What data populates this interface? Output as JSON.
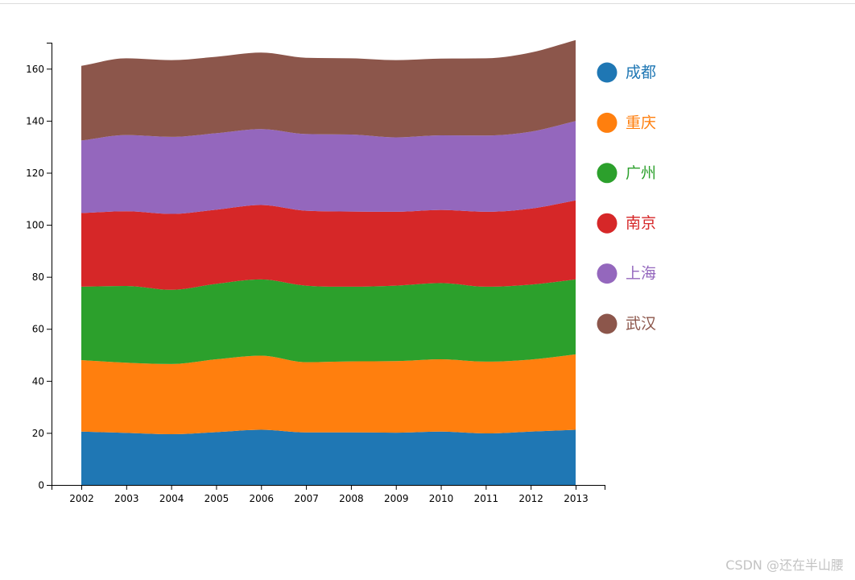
{
  "chart_data": {
    "type": "area",
    "stacked": true,
    "title": "",
    "xlabel": "",
    "ylabel": "",
    "x": [
      "2002",
      "2003",
      "2004",
      "2005",
      "2006",
      "2007",
      "2008",
      "2009",
      "2010",
      "2011",
      "2012",
      "2013"
    ],
    "ylim": [
      0,
      170
    ],
    "y_ticks": [
      0,
      20,
      40,
      60,
      80,
      100,
      120,
      140,
      160
    ],
    "legend_position": "right",
    "series": [
      {
        "name": "成都",
        "color": "#1f77b4",
        "values": [
          20.5,
          20,
          19.5,
          20.3,
          21.2,
          20.2,
          20.2,
          20.1,
          20.5,
          19.8,
          20.5,
          21.2
        ]
      },
      {
        "name": "重庆",
        "color": "#ff7f0e",
        "values": [
          27.5,
          27,
          27,
          28,
          28.5,
          27,
          27.3,
          27.5,
          27.8,
          27.6,
          27.7,
          29
        ]
      },
      {
        "name": "广州",
        "color": "#2ca02c",
        "values": [
          28.2,
          29.5,
          28.5,
          29,
          29.3,
          29.4,
          28.7,
          29,
          29.3,
          28.8,
          28.8,
          28.8
        ]
      },
      {
        "name": "南京",
        "color": "#d62728",
        "values": [
          28.3,
          28.7,
          29.2,
          28.5,
          28.6,
          28.8,
          28.9,
          28.4,
          28.1,
          28.8,
          29.2,
          30.4
        ]
      },
      {
        "name": "上海",
        "color": "#9467bd",
        "values": [
          27.9,
          29.3,
          29.6,
          29.4,
          29.2,
          29.5,
          29.6,
          28.6,
          28.7,
          29.3,
          29.6,
          30.5
        ]
      },
      {
        "name": "武汉",
        "color": "#8c564b",
        "values": [
          28.7,
          29.5,
          29.5,
          29.4,
          29.4,
          29.3,
          29.3,
          29.7,
          29.5,
          29.7,
          30.4,
          31.1
        ]
      }
    ]
  },
  "watermark": "CSDN @还在半山腰"
}
